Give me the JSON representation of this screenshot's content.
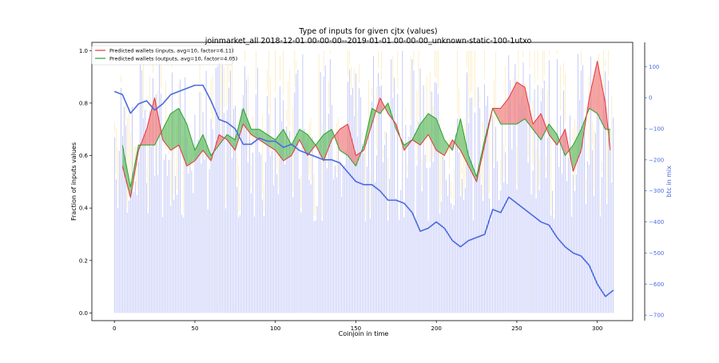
{
  "chart_data": {
    "type": "line",
    "title": "Type of inputs for given cjtx (values)",
    "subtitle": "joinmarket_all 2018-12-01 00-00-00--2019-01-01 00-00-00_unknown-static-100-1utxo",
    "xlabel": "Coinjoin in time",
    "ylabel": "Fraction of inputs values",
    "ylabel_right": "btc in mix",
    "xlim": [
      -14,
      322
    ],
    "ylim": [
      -0.02,
      1.01
    ],
    "ylim_right": [
      -710,
      160
    ],
    "x_ticks": [
      0,
      50,
      100,
      150,
      200,
      250,
      300
    ],
    "y_ticks": [
      0.0,
      0.2,
      0.4,
      0.6,
      0.8,
      1.0
    ],
    "y_ticks_right": [
      100,
      0,
      -100,
      -200,
      -300,
      -400,
      -500,
      -600,
      -700
    ],
    "legend": {
      "position": "top-left",
      "entries": [
        {
          "label": "Predicted wallets (inputs, avg=10, factor=6.11)",
          "color": "#e8353a"
        },
        {
          "label": "Predicted wallets (outputs, avg=10, factor=4.05)",
          "color": "#2ca02c"
        }
      ]
    },
    "grid": false,
    "colors": {
      "background_bars": "#4050e8",
      "background_bars_top": "#f5c542",
      "inputs_line": "#e8353a",
      "outputs_line": "#2ca02c",
      "btc_line": "#4a6be0",
      "right_axis": "#4a6be0",
      "fill_inputs_above": "#f08080",
      "fill_outputs_above": "#6abf6a"
    },
    "background_bars_note": "",
    "series": [
      {
        "name": "Predicted wallets (inputs, avg=10, factor=6.11)",
        "axis": "left",
        "x": [
          5,
          10,
          15,
          20,
          25,
          30,
          35,
          40,
          45,
          50,
          55,
          60,
          65,
          70,
          75,
          80,
          85,
          90,
          95,
          100,
          105,
          110,
          115,
          120,
          125,
          130,
          135,
          140,
          145,
          150,
          155,
          160,
          165,
          170,
          175,
          180,
          185,
          190,
          195,
          200,
          205,
          210,
          215,
          220,
          225,
          230,
          235,
          240,
          245,
          250,
          255,
          260,
          265,
          270,
          275,
          280,
          285,
          290,
          295,
          300,
          305,
          308
        ],
        "values": [
          0.56,
          0.44,
          0.62,
          0.7,
          0.82,
          0.66,
          0.62,
          0.64,
          0.56,
          0.58,
          0.62,
          0.58,
          0.68,
          0.66,
          0.62,
          0.72,
          0.68,
          0.66,
          0.64,
          0.62,
          0.58,
          0.6,
          0.66,
          0.6,
          0.64,
          0.58,
          0.66,
          0.7,
          0.72,
          0.6,
          0.62,
          0.72,
          0.82,
          0.76,
          0.72,
          0.62,
          0.66,
          0.64,
          0.68,
          0.62,
          0.6,
          0.66,
          0.62,
          0.56,
          0.5,
          0.64,
          0.78,
          0.78,
          0.82,
          0.88,
          0.86,
          0.72,
          0.76,
          0.68,
          0.64,
          0.7,
          0.54,
          0.62,
          0.82,
          0.96,
          0.8,
          0.62
        ]
      },
      {
        "name": "Predicted wallets (outputs, avg=10, factor=4.05)",
        "axis": "left",
        "x": [
          5,
          10,
          15,
          20,
          25,
          30,
          35,
          40,
          45,
          50,
          55,
          60,
          65,
          70,
          75,
          80,
          85,
          90,
          95,
          100,
          105,
          110,
          115,
          120,
          125,
          130,
          135,
          140,
          145,
          150,
          155,
          160,
          165,
          170,
          175,
          180,
          185,
          190,
          195,
          200,
          205,
          210,
          215,
          220,
          225,
          230,
          235,
          240,
          245,
          250,
          255,
          260,
          265,
          270,
          275,
          280,
          285,
          290,
          295,
          300,
          305,
          308
        ],
        "values": [
          0.64,
          0.48,
          0.64,
          0.64,
          0.64,
          0.7,
          0.76,
          0.78,
          0.72,
          0.62,
          0.68,
          0.6,
          0.64,
          0.68,
          0.66,
          0.78,
          0.7,
          0.7,
          0.68,
          0.66,
          0.7,
          0.64,
          0.7,
          0.68,
          0.64,
          0.68,
          0.7,
          0.62,
          0.6,
          0.56,
          0.64,
          0.78,
          0.76,
          0.8,
          0.7,
          0.64,
          0.66,
          0.72,
          0.76,
          0.74,
          0.66,
          0.62,
          0.74,
          0.6,
          0.52,
          0.66,
          0.78,
          0.72,
          0.72,
          0.72,
          0.74,
          0.7,
          0.66,
          0.72,
          0.68,
          0.6,
          0.64,
          0.7,
          0.78,
          0.76,
          0.7,
          0.7
        ]
      },
      {
        "name": "btc in mix",
        "axis": "right",
        "x": [
          0,
          5,
          10,
          15,
          20,
          25,
          30,
          35,
          40,
          45,
          50,
          55,
          60,
          65,
          70,
          75,
          80,
          85,
          90,
          95,
          100,
          105,
          110,
          115,
          120,
          125,
          130,
          135,
          140,
          145,
          150,
          155,
          160,
          165,
          170,
          175,
          180,
          185,
          190,
          195,
          200,
          205,
          210,
          215,
          220,
          225,
          230,
          235,
          240,
          245,
          250,
          255,
          260,
          265,
          270,
          275,
          280,
          285,
          290,
          295,
          300,
          305,
          310
        ],
        "values": [
          20,
          10,
          -50,
          -20,
          -10,
          -40,
          -20,
          10,
          20,
          30,
          40,
          40,
          -10,
          -70,
          -80,
          -100,
          -150,
          -150,
          -130,
          -140,
          -140,
          -160,
          -150,
          -170,
          -180,
          -190,
          -200,
          -200,
          -210,
          -240,
          -270,
          -280,
          -280,
          -300,
          -330,
          -330,
          -340,
          -370,
          -430,
          -420,
          -400,
          -420,
          -460,
          -480,
          -460,
          -450,
          -440,
          -360,
          -370,
          -320,
          -340,
          -360,
          -380,
          -400,
          -410,
          -450,
          -480,
          -500,
          -510,
          -540,
          -600,
          -640,
          -620
        ]
      }
    ]
  }
}
